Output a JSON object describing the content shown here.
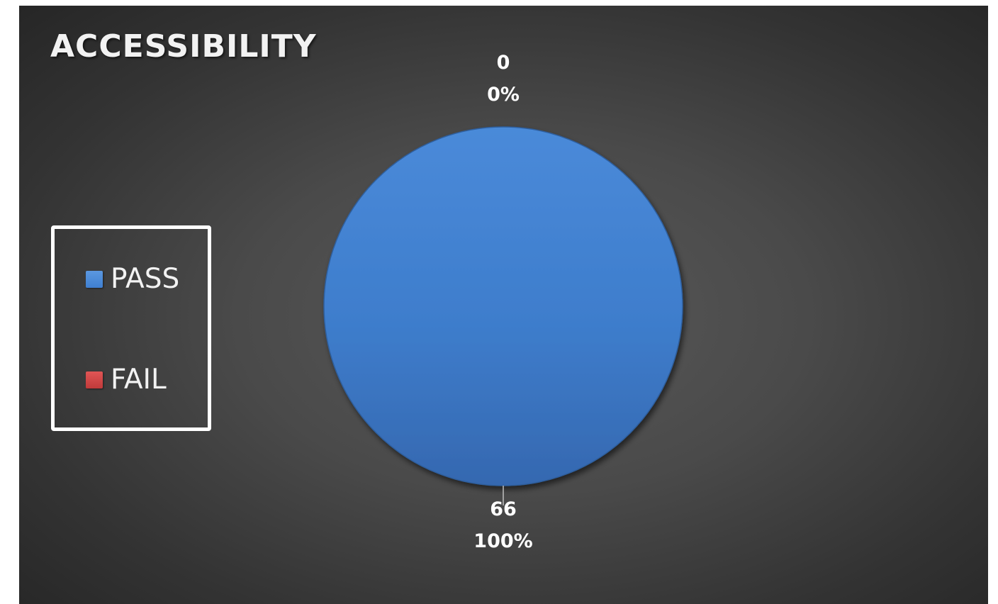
{
  "chart_data": {
    "type": "pie",
    "title": "ACCESSIBILITY",
    "categories": [
      "PASS",
      "FAIL"
    ],
    "values": [
      66,
      0
    ],
    "percent_labels": [
      "100%",
      "0%"
    ],
    "colors": [
      "#3f7fd1",
      "#c03a3a"
    ],
    "legend_position": "left",
    "background": "#3a3a3a"
  }
}
